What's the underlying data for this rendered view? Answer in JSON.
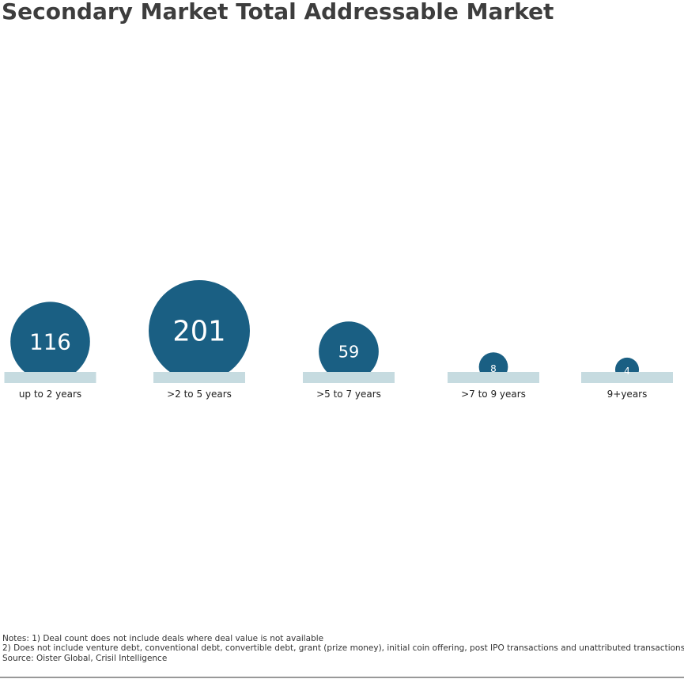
{
  "chart_data": {
    "type": "bubble",
    "title": "Secondary Market Total Addressable Market",
    "categories": [
      "up to 2 years",
      ">2 to 5 years",
      ">5 to 7 years",
      ">7 to 9 years",
      "9+years"
    ],
    "values": [
      116,
      201,
      59,
      8,
      4
    ],
    "color": "#1a5f83",
    "base_color": "#c6dbe0",
    "notes": [
      "Notes: 1) Deal count does not include deals where deal value is not available",
      "2) Does not include venture debt, conventional debt, convertible debt, grant (prize money), initial coin offering, post IPO transactions and unattributed transactions",
      "Source: Oister Global, Crisil Intelligence"
    ]
  }
}
